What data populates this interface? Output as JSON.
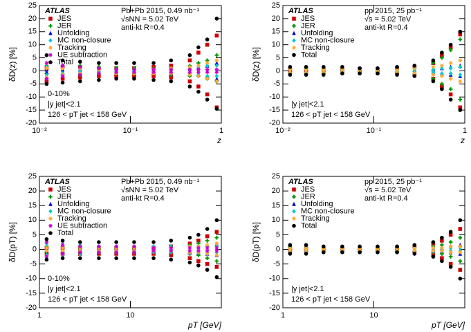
{
  "chart_data": [
    {
      "type": "scatter",
      "experiment": "ATLAS",
      "info": [
        "Pb+Pb  2015, 0.49 nb⁻¹",
        "√sNN = 5.02 TeV",
        "anti-kt R=0.4"
      ],
      "cuts": [
        "0-10%",
        "|y jet|<2.1",
        "126 < pT jet < 158 GeV"
      ],
      "y_label": "δD(z) [%]",
      "x_label": "z",
      "log_x": true,
      "xlim": [
        0.01,
        1
      ],
      "xticks": [
        {
          "value": 0.01,
          "label": "10⁻²"
        },
        {
          "value": 0.1,
          "label": "10⁻¹"
        },
        1
      ],
      "ylim": [
        -20,
        25
      ],
      "yticks": [
        -20,
        -15,
        -10,
        -5,
        0,
        5,
        10,
        15,
        20,
        25
      ],
      "x": [
        0.012,
        0.018,
        0.028,
        0.045,
        0.07,
        0.11,
        0.18,
        0.28,
        0.45,
        0.56,
        0.7,
        0.89
      ],
      "series": [
        {
          "name": "JES",
          "color": "#cc0000",
          "marker": "square",
          "values": [
            1,
            1.5,
            1.5,
            1,
            1,
            1,
            1.5,
            2,
            4,
            7,
            10,
            13.5
          ],
          "lower": [
            -4,
            -3,
            -2.5,
            -2,
            -2,
            -2,
            -2,
            -2.5,
            -4,
            -6,
            -9,
            -14
          ]
        },
        {
          "name": "JER",
          "color": "#009900",
          "marker": "cross",
          "values": [
            2,
            2,
            2,
            1.5,
            1,
            1,
            1,
            1,
            2,
            3,
            4,
            6
          ],
          "lower": [
            -1,
            -1.5,
            -1.5,
            -1,
            -1,
            -1,
            -1,
            -1.5,
            -2,
            -2,
            -3,
            -4
          ]
        },
        {
          "name": "Unfolding",
          "color": "#0000cc",
          "marker": "triangle",
          "values": [
            0.5,
            0.5,
            0.5,
            0.5,
            0.5,
            0.5,
            0.5,
            1,
            1,
            1.5,
            2,
            3
          ],
          "lower": [
            -0.5,
            -0.5,
            -0.5,
            -0.5,
            -0.5,
            -0.5,
            -0.5,
            -1,
            -1,
            -1.5,
            -2,
            -3
          ]
        },
        {
          "name": "MC non-closure",
          "color": "#00cccc",
          "marker": "diamond",
          "values": [
            1.5,
            1,
            0.5,
            0.5,
            0.3,
            0.3,
            0.3,
            0.5,
            1,
            1.5,
            2,
            2
          ],
          "lower": [
            -1.5,
            -1,
            -0.5,
            -0.5,
            -0.3,
            -0.3,
            -0.3,
            -0.5,
            -1,
            -1.5,
            -2,
            -2
          ]
        },
        {
          "name": "Tracking",
          "color": "#ffaa33",
          "marker": "star",
          "values": [
            1,
            1,
            1,
            0.5,
            0.5,
            0.5,
            0.5,
            1,
            1.5,
            2,
            3,
            4
          ],
          "lower": [
            -2.5,
            -1.5,
            -1,
            -1,
            -1,
            -1,
            -1,
            -1,
            -1.5,
            -2,
            -3,
            -4
          ]
        },
        {
          "name": "UE subtraction",
          "color": "#cc00cc",
          "marker": "star",
          "values": [
            3,
            2,
            1.5,
            1,
            0.5,
            0.5,
            0.5,
            0.5,
            0.5,
            0.5,
            0.5,
            0.5
          ],
          "lower": [
            -3,
            -2,
            -1.5,
            -1,
            -0.5,
            -0.5,
            -0.5,
            -0.5,
            -0.5,
            -0.5,
            -0.5,
            -0.5
          ]
        },
        {
          "name": "Total",
          "color": "#000000",
          "marker": "circle",
          "values": [
            6,
            4,
            3.5,
            3,
            3,
            3,
            3,
            4,
            6,
            9,
            12,
            20
          ],
          "lower": [
            -5,
            -4.5,
            -4,
            -3.5,
            -3,
            -3,
            -3.5,
            -4,
            -6,
            -8,
            -11,
            -14.5
          ]
        }
      ]
    },
    {
      "type": "scatter",
      "experiment": "ATLAS",
      "info": [
        "pp  2015, 25 pb⁻¹",
        "√s = 5.02 TeV",
        "anti-kt R=0.4"
      ],
      "cuts": [
        "|y jet|<2.1",
        "126 < pT jet < 158 GeV"
      ],
      "y_label": "δD(z) [%]",
      "x_label": "z",
      "log_x": true,
      "xlim": [
        0.01,
        1
      ],
      "xticks": [
        {
          "value": 0.01,
          "label": "10⁻²"
        },
        {
          "value": 0.1,
          "label": "10⁻¹"
        },
        1
      ],
      "ylim": [
        -20,
        25
      ],
      "yticks": [
        -20,
        -15,
        -10,
        -5,
        0,
        5,
        10,
        15,
        20,
        25
      ],
      "x": [
        0.012,
        0.018,
        0.028,
        0.045,
        0.07,
        0.11,
        0.18,
        0.28,
        0.45,
        0.56,
        0.7,
        0.89
      ],
      "series": [
        {
          "name": "JES",
          "color": "#cc0000",
          "marker": "square",
          "values": [
            0.5,
            0.5,
            0.5,
            0.5,
            0.5,
            0.5,
            1,
            1.5,
            3,
            6,
            9,
            14
          ],
          "lower": [
            -0.5,
            -0.5,
            -0.5,
            -0.5,
            -0.5,
            -0.5,
            -1,
            -1.5,
            -3,
            -6,
            -9,
            -14
          ]
        },
        {
          "name": "JER",
          "color": "#009900",
          "marker": "cross",
          "values": [
            1,
            1,
            1,
            0.5,
            0.5,
            0.5,
            0.5,
            1,
            3,
            5,
            8,
            12
          ],
          "lower": [
            -1,
            -1,
            -1,
            -0.5,
            -0.5,
            -0.5,
            -0.5,
            -1,
            -3,
            -5,
            -7,
            -11
          ]
        },
        {
          "name": "Unfolding",
          "color": "#0000cc",
          "marker": "triangle",
          "values": [
            0.3,
            0.3,
            0.3,
            0.3,
            0.3,
            0.3,
            0.3,
            0.5,
            0.5,
            1,
            1.5,
            2
          ],
          "lower": [
            -0.3,
            -0.3,
            -0.3,
            -0.3,
            -0.3,
            -0.3,
            -0.3,
            -0.5,
            -0.5,
            -1,
            -1.5,
            -2
          ]
        },
        {
          "name": "MC non-closure",
          "color": "#00cccc",
          "marker": "diamond",
          "values": [
            1,
            0.8,
            0.5,
            0.3,
            0.3,
            0.3,
            0.3,
            0.3,
            0.5,
            1,
            1,
            1.5
          ],
          "lower": [
            -1,
            -0.8,
            -0.5,
            -0.3,
            -0.3,
            -0.3,
            -0.3,
            -0.3,
            -0.5,
            -1,
            -1,
            -1.5
          ]
        },
        {
          "name": "Tracking",
          "color": "#ffaa33",
          "marker": "star",
          "values": [
            0.5,
            0.5,
            0.5,
            0.5,
            0.5,
            0.5,
            0.5,
            1,
            1.5,
            2,
            3,
            4
          ],
          "lower": [
            -0.5,
            -0.5,
            -0.5,
            -0.5,
            -0.5,
            -0.5,
            -0.5,
            -1,
            -1.5,
            -2,
            -3,
            -4
          ]
        },
        {
          "name": "Total",
          "color": "#000000",
          "marker": "circle",
          "values": [
            1.5,
            1.5,
            1.5,
            1.5,
            1,
            1,
            1.5,
            2,
            4,
            7,
            10,
            15
          ],
          "lower": [
            -1.5,
            -1.5,
            -1.5,
            -1,
            -1,
            -1,
            -1.5,
            -2,
            -4,
            -7,
            -11,
            -15
          ]
        }
      ]
    },
    {
      "type": "scatter",
      "experiment": "ATLAS",
      "info": [
        "Pb+Pb  2015, 0.49 nb⁻¹",
        "√sNN = 5.02 TeV",
        "anti-kt R=0.4"
      ],
      "cuts": [
        "0-10%",
        "|y jet|<2.1",
        "126 < pT jet < 158 GeV"
      ],
      "y_label": "δD(pT) [%]",
      "x_label": "pT [GeV]",
      "log_x": true,
      "xlim": [
        1,
        100
      ],
      "xticks": [
        1,
        10
      ],
      "ylim": [
        -20,
        25
      ],
      "yticks": [
        -20,
        -15,
        -10,
        -5,
        0,
        5,
        10,
        15,
        20,
        25
      ],
      "x": [
        1.2,
        1.8,
        2.8,
        4.5,
        7,
        11,
        18,
        28,
        45,
        56,
        70,
        89
      ],
      "series": [
        {
          "name": "JES",
          "color": "#cc0000",
          "marker": "square",
          "values": [
            0.5,
            0.5,
            0.5,
            0.5,
            0.5,
            0.5,
            0.5,
            1,
            2,
            3,
            4.5,
            6
          ],
          "lower": [
            -1.5,
            -1.5,
            -1.5,
            -1.5,
            -1.5,
            -1.5,
            -1.5,
            -2,
            -3,
            -4,
            -5,
            -6
          ]
        },
        {
          "name": "JER",
          "color": "#009900",
          "marker": "cross",
          "values": [
            1,
            1,
            0.5,
            0.5,
            0.5,
            0.5,
            1,
            1,
            1.5,
            2,
            3,
            4
          ],
          "lower": [
            -1,
            -1,
            -0.5,
            -0.5,
            -0.5,
            -0.5,
            -1,
            -1,
            -1.5,
            -2,
            -3,
            -4
          ]
        },
        {
          "name": "Unfolding",
          "color": "#0000cc",
          "marker": "triangle",
          "values": [
            0.5,
            0.5,
            0.5,
            0.5,
            0.5,
            0.5,
            0.5,
            0.5,
            1,
            1,
            1.5,
            2
          ],
          "lower": [
            -0.5,
            -0.5,
            -0.5,
            -0.5,
            -0.5,
            -0.5,
            -0.5,
            -0.5,
            -1,
            -1,
            -1.5,
            -2
          ]
        },
        {
          "name": "MC non-closure",
          "color": "#00cccc",
          "marker": "diamond",
          "values": [
            2,
            2,
            1.5,
            1,
            1,
            1,
            1,
            1,
            1,
            1,
            1,
            1
          ],
          "lower": [
            -2,
            -2,
            -1.5,
            -1,
            -1,
            -1,
            -1,
            -1,
            -1,
            -1,
            -1,
            -1
          ]
        },
        {
          "name": "Tracking",
          "color": "#ffaa33",
          "marker": "star",
          "values": [
            0.5,
            0.5,
            0.5,
            0.5,
            0.5,
            0.5,
            0.5,
            0.5,
            1,
            1,
            1.5,
            2
          ],
          "lower": [
            -0.5,
            -0.5,
            -0.5,
            -0.5,
            -0.5,
            -0.5,
            -0.5,
            -0.5,
            -1,
            -1,
            -1.5,
            -2
          ]
        },
        {
          "name": "UE subtraction",
          "color": "#cc00cc",
          "marker": "star",
          "values": [
            2.5,
            1.5,
            1,
            1,
            1,
            1,
            0.5,
            0.5,
            0.5,
            0.5,
            0.5,
            0.5
          ],
          "lower": [
            -2.5,
            -1.5,
            -1,
            -1,
            -1,
            -1,
            -0.5,
            -0.5,
            -0.5,
            -0.5,
            -0.5,
            -0.5
          ]
        },
        {
          "name": "Total",
          "color": "#000000",
          "marker": "circle",
          "values": [
            3.5,
            3,
            2.5,
            2.5,
            2.5,
            2.5,
            2.5,
            3,
            4,
            5,
            7,
            10
          ],
          "lower": [
            -3.5,
            -3,
            -3,
            -3,
            -3,
            -3,
            -3,
            -3.5,
            -4.5,
            -5.5,
            -7,
            -9.5
          ]
        }
      ]
    },
    {
      "type": "scatter",
      "experiment": "ATLAS",
      "info": [
        "pp  2015, 25 pb⁻¹",
        "√s = 5.02 TeV",
        "anti-kt R=0.4"
      ],
      "cuts": [
        "|y jet|<2.1",
        "126 < pT jet < 158 GeV"
      ],
      "y_label": "δD(pT) [%]",
      "x_label": "pT [GeV]",
      "log_x": true,
      "xlim": [
        1,
        100
      ],
      "xticks": [
        1,
        10
      ],
      "ylim": [
        -20,
        25
      ],
      "yticks": [
        -20,
        -15,
        -10,
        -5,
        0,
        5,
        10,
        15,
        20,
        25
      ],
      "x": [
        1.2,
        1.8,
        2.8,
        4.5,
        7,
        11,
        18,
        28,
        45,
        56,
        70,
        89
      ],
      "series": [
        {
          "name": "JES",
          "color": "#cc0000",
          "marker": "square",
          "values": [
            0.3,
            0.3,
            0.3,
            0.3,
            0.3,
            0.3,
            0.5,
            1,
            2,
            3,
            5,
            7
          ],
          "lower": [
            -0.3,
            -0.3,
            -0.3,
            -0.3,
            -0.3,
            -0.3,
            -0.5,
            -1,
            -2,
            -3,
            -5,
            -7
          ]
        },
        {
          "name": "JER",
          "color": "#009900",
          "marker": "cross",
          "values": [
            1,
            0.5,
            0.5,
            0.5,
            0.5,
            0.5,
            0.5,
            0.5,
            1,
            1.5,
            2.5,
            4
          ],
          "lower": [
            -1,
            -0.5,
            -0.5,
            -0.5,
            -0.5,
            -0.5,
            -0.5,
            -0.5,
            -1,
            -1.5,
            -2.5,
            -4
          ]
        },
        {
          "name": "Unfolding",
          "color": "#0000cc",
          "marker": "triangle",
          "values": [
            0.3,
            0.3,
            0.3,
            0.3,
            0.3,
            0.3,
            0.3,
            0.3,
            0.5,
            0.5,
            1,
            1.5
          ],
          "lower": [
            -0.3,
            -0.3,
            -0.3,
            -0.3,
            -0.3,
            -0.3,
            -0.3,
            -0.3,
            -0.5,
            -0.5,
            -1,
            -1.5
          ]
        },
        {
          "name": "MC non-closure",
          "color": "#00cccc",
          "marker": "diamond",
          "values": [
            0.5,
            0.5,
            0.5,
            0.5,
            0.5,
            0.5,
            0.5,
            0.5,
            0.5,
            0.5,
            0.5,
            0.5
          ],
          "lower": [
            -0.5,
            -0.5,
            -0.5,
            -0.5,
            -0.5,
            -0.5,
            -0.5,
            -0.5,
            -0.5,
            -0.5,
            -0.5,
            -0.5
          ]
        },
        {
          "name": "Tracking",
          "color": "#ffaa33",
          "marker": "star",
          "values": [
            0.3,
            0.3,
            0.3,
            0.3,
            0.3,
            0.3,
            0.3,
            0.3,
            0.5,
            0.5,
            1,
            1
          ],
          "lower": [
            -0.3,
            -0.3,
            -0.3,
            -0.3,
            -0.3,
            -0.3,
            -0.3,
            -0.3,
            -0.5,
            -0.5,
            -1,
            -1
          ]
        },
        {
          "name": "Total",
          "color": "#000000",
          "marker": "circle",
          "values": [
            1.5,
            1.5,
            1,
            1,
            1,
            1,
            1,
            1.5,
            2.5,
            4,
            6,
            10
          ],
          "lower": [
            -1.5,
            -1.5,
            -1,
            -1,
            -1,
            -1,
            -1,
            -1.5,
            -2.5,
            -4,
            -6,
            -10
          ]
        }
      ]
    }
  ]
}
